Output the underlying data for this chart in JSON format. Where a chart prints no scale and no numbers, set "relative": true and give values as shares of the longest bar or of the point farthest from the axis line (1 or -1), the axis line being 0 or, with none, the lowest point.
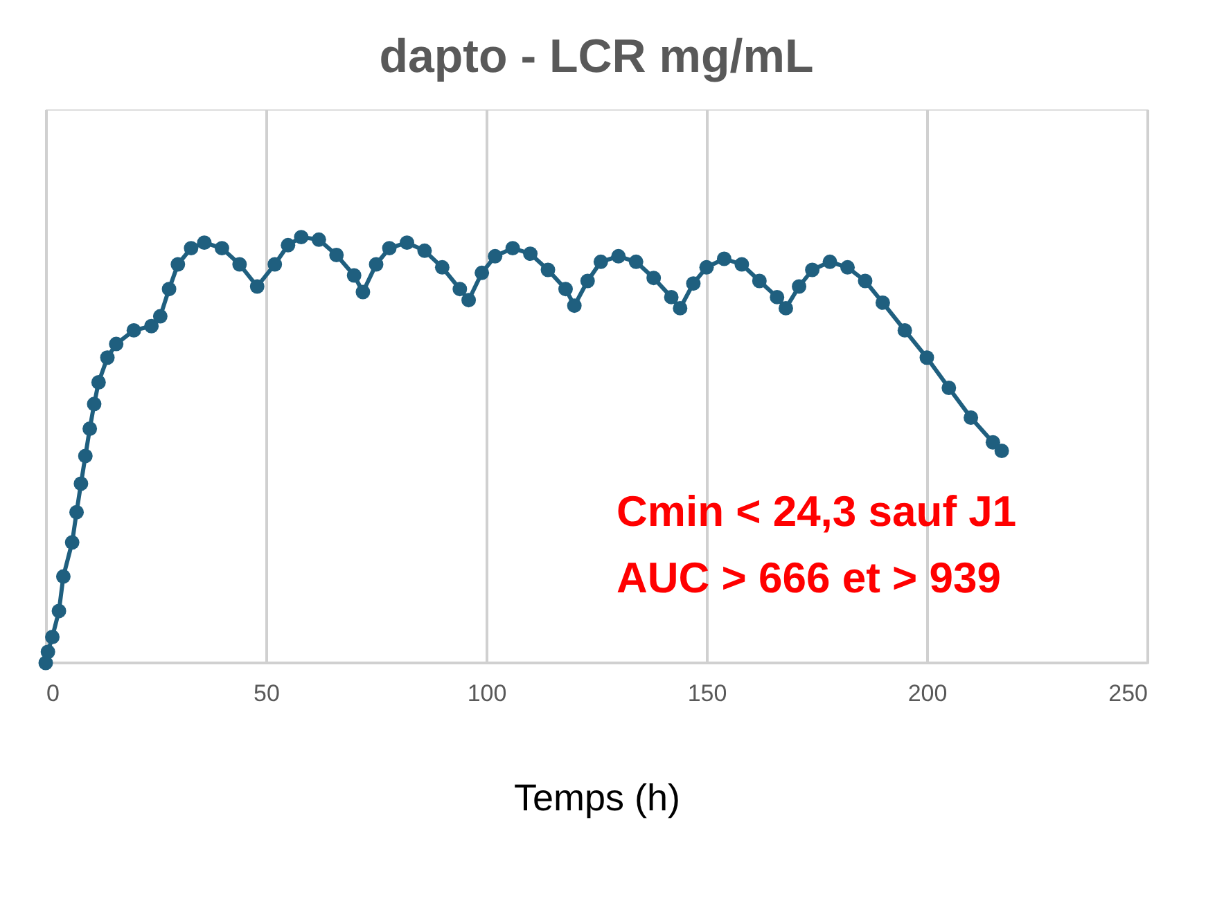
{
  "chart_data": {
    "type": "line",
    "title": "dapto - LCR mg/mL",
    "xlabel": "Temps (h)",
    "relative": true,
    "marker": "circle",
    "grid": "x",
    "tick_labels": "x",
    "xlim": [
      0,
      250
    ],
    "xticks": [
      0,
      50,
      100,
      150,
      200,
      250
    ],
    "x": [
      0,
      0.5,
      1.5,
      3,
      4,
      6,
      7,
      8,
      9,
      10,
      11,
      12,
      14,
      16,
      20,
      24,
      26,
      28,
      30,
      33,
      36,
      40,
      44,
      48,
      52,
      55,
      58,
      62,
      66,
      70,
      72,
      75,
      78,
      82,
      86,
      90,
      94,
      96,
      99,
      102,
      106,
      110,
      114,
      118,
      120,
      123,
      126,
      130,
      134,
      138,
      142,
      144,
      147,
      150,
      154,
      158,
      162,
      166,
      168,
      171,
      174,
      178,
      182,
      186,
      190,
      195,
      200,
      205,
      210,
      215,
      217
    ],
    "series": [
      {
        "color": "#1f5f7f",
        "values": [
          0,
          0.026,
          0.061,
          0.122,
          0.203,
          0.283,
          0.354,
          0.421,
          0.486,
          0.55,
          0.608,
          0.659,
          0.717,
          0.749,
          0.781,
          0.791,
          0.814,
          0.878,
          0.936,
          0.974,
          0.987,
          0.974,
          0.936,
          0.884,
          0.936,
          0.981,
          1,
          0.994,
          0.958,
          0.91,
          0.871,
          0.936,
          0.974,
          0.987,
          0.968,
          0.929,
          0.878,
          0.852,
          0.916,
          0.955,
          0.974,
          0.961,
          0.923,
          0.878,
          0.839,
          0.897,
          0.942,
          0.955,
          0.942,
          0.904,
          0.859,
          0.833,
          0.891,
          0.929,
          0.949,
          0.936,
          0.897,
          0.859,
          0.833,
          0.884,
          0.923,
          0.942,
          0.929,
          0.897,
          0.846,
          0.781,
          0.717,
          0.646,
          0.576,
          0.518,
          0.498
        ]
      }
    ],
    "annotations": [
      "Cmin < 24,3 sauf J1",
      "AUC > 666 et > 939"
    ]
  }
}
